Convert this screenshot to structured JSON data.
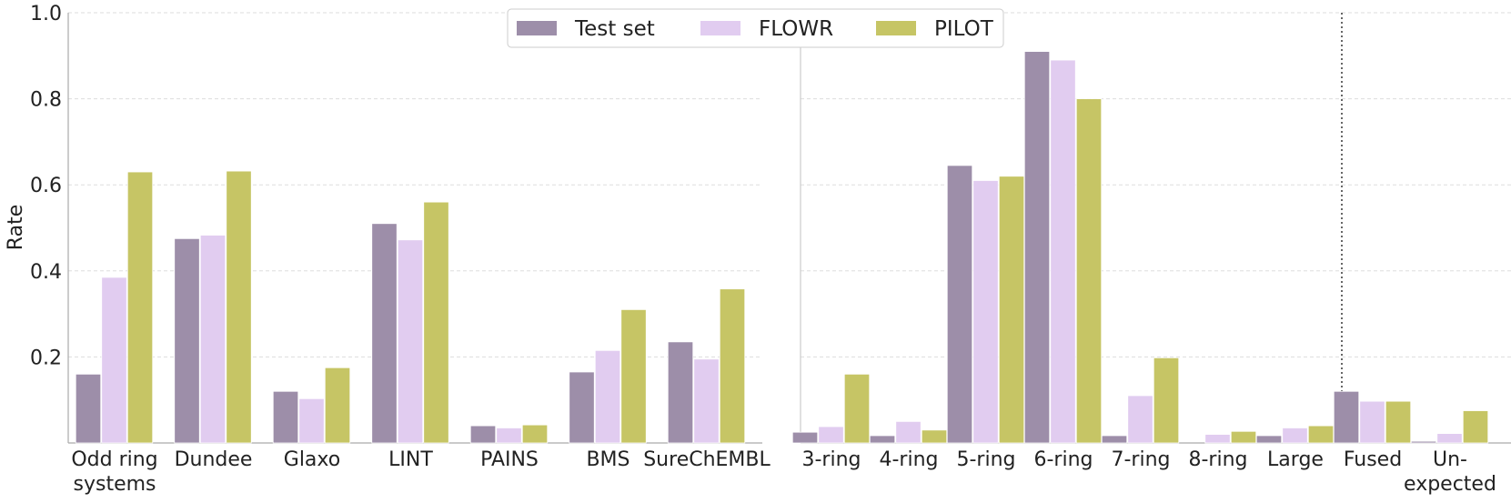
{
  "chart_data": {
    "type": "bar",
    "ylabel": "Rate",
    "ylim": [
      0,
      1.0
    ],
    "yticks": [
      "0.2",
      "0.4",
      "0.6",
      "0.8",
      "1.0"
    ],
    "grid": true,
    "legend_position": "top-center",
    "colors": {
      "Test set": "#9d8ea9",
      "FLOWR": "#e1ccf0",
      "PILOT": "#c6c565"
    },
    "panels": [
      {
        "categories": [
          [
            "Odd ring",
            "systems"
          ],
          [
            "Dundee"
          ],
          [
            "Glaxo"
          ],
          [
            "LINT"
          ],
          [
            "PAINS"
          ],
          [
            "BMS"
          ],
          [
            "SureChEMBL"
          ]
        ],
        "series": [
          {
            "name": "Test set",
            "values": [
              0.16,
              0.475,
              0.12,
              0.51,
              0.04,
              0.165,
              0.235
            ]
          },
          {
            "name": "FLOWR",
            "values": [
              0.385,
              0.483,
              0.103,
              0.472,
              0.035,
              0.215,
              0.195
            ]
          },
          {
            "name": "PILOT",
            "values": [
              0.63,
              0.632,
              0.175,
              0.56,
              0.042,
              0.31,
              0.358
            ]
          }
        ]
      },
      {
        "categories": [
          [
            "3-ring"
          ],
          [
            "4-ring"
          ],
          [
            "5-ring"
          ],
          [
            "6-ring"
          ],
          [
            "7-ring"
          ],
          [
            "8-ring"
          ],
          [
            "Large"
          ],
          [
            "Fused"
          ],
          [
            "Un-",
            "expected"
          ]
        ],
        "series": [
          {
            "name": "Test set",
            "values": [
              0.025,
              0.017,
              0.645,
              0.91,
              0.017,
              0.0,
              0.017,
              0.12,
              0.004
            ]
          },
          {
            "name": "FLOWR",
            "values": [
              0.038,
              0.05,
              0.61,
              0.89,
              0.11,
              0.02,
              0.035,
              0.097,
              0.022
            ]
          },
          {
            "name": "PILOT",
            "values": [
              0.16,
              0.03,
              0.62,
              0.8,
              0.198,
              0.027,
              0.04,
              0.097,
              0.075
            ]
          }
        ]
      }
    ]
  }
}
